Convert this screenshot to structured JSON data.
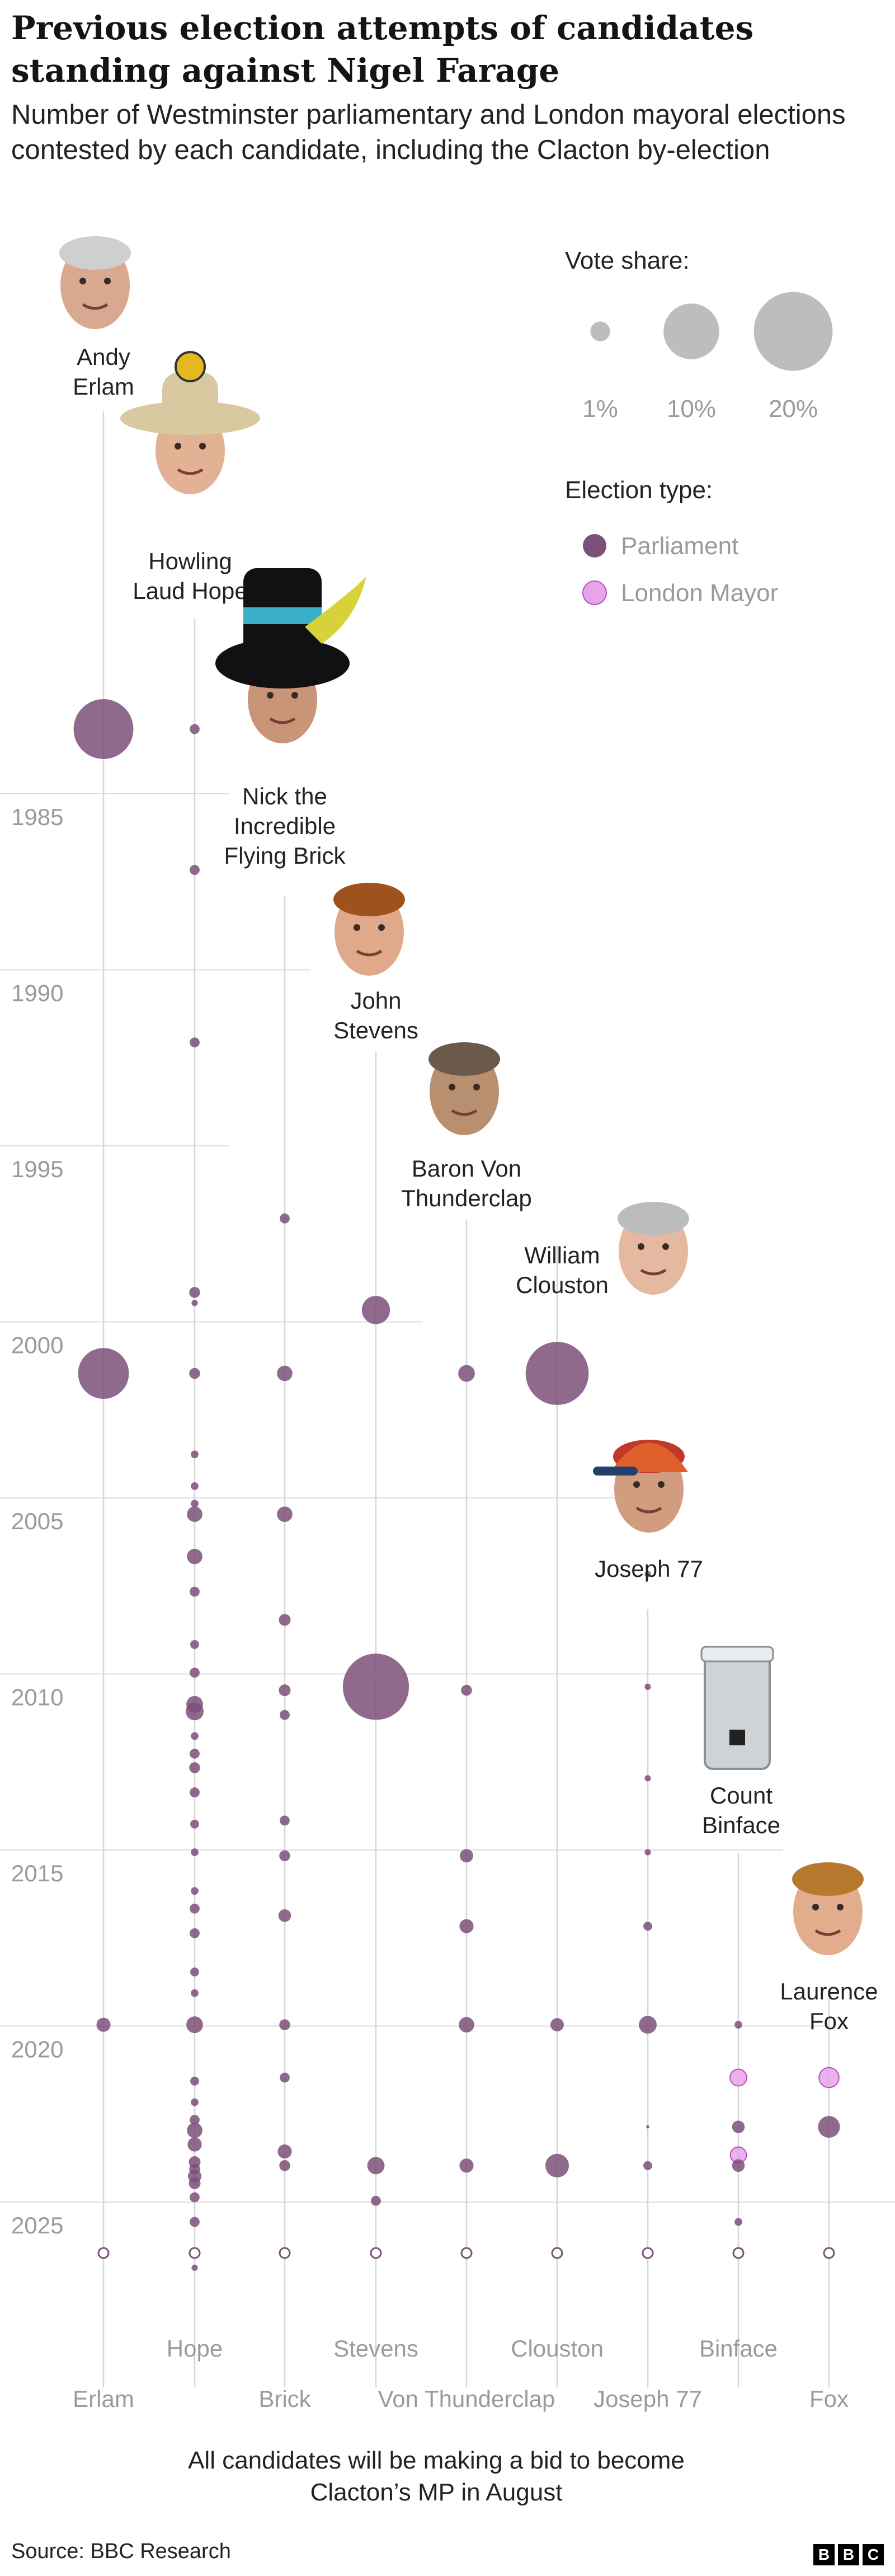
{
  "title": "Previous election attempts of candidates standing against Nigel Farage",
  "subtitle": "Number of Westminster parliamentary and London mayoral elections contested by each candidate, including the Clacton by-election",
  "footer": {
    "source": "Source: BBC Research",
    "logo": [
      "B",
      "B",
      "C"
    ]
  },
  "note": "All candidates will be making a bid to become Clacton’s MP in August",
  "legend": {
    "size_title": "Vote share:",
    "size_items": [
      {
        "label": "1%",
        "share": 1
      },
      {
        "label": "10%",
        "share": 10
      },
      {
        "label": "20%",
        "share": 20
      }
    ],
    "type_title": "Election type:",
    "type_items": [
      {
        "label": "Parliament",
        "color": "#7d5079"
      },
      {
        "label": "London Mayor",
        "color": "#e8a3ea"
      }
    ]
  },
  "colors": {
    "parliament": "#7d5079",
    "mayor": "#e8a3ea",
    "mayor_stroke": "#b84ec2",
    "grid": "#dddddd",
    "axis_text": "#9a9a9a"
  },
  "chart_data": {
    "type": "scatter",
    "y_axis": {
      "ticks": [
        1985,
        1990,
        1995,
        2000,
        2005,
        2010,
        2015,
        2020,
        2025
      ],
      "range": [
        1979,
        2031
      ],
      "reversed": true
    },
    "candidates": [
      {
        "name": "Andy Erlam",
        "label": "Erlam",
        "photo": "andy-erlam-photo-icon",
        "elections": [
          {
            "year": 1983.1,
            "share": 18,
            "type": "parliament"
          },
          {
            "year": 2001.4,
            "share": 13,
            "type": "parliament"
          },
          {
            "year": 2019.9,
            "share": 1,
            "type": "parliament"
          }
        ]
      },
      {
        "name": "Howling Laud Hope",
        "label": "Hope",
        "photo": "howling-laud-hope-photo-icon",
        "elections": [
          {
            "year": 1983.1,
            "share": 0.5,
            "type": "parliament"
          },
          {
            "year": 1987.1,
            "share": 0.5,
            "type": "parliament"
          },
          {
            "year": 1992.0,
            "share": 0.5,
            "type": "parliament"
          },
          {
            "year": 1999.1,
            "share": 0.6,
            "type": "parliament"
          },
          {
            "year": 1999.4,
            "share": 0.2,
            "type": "parliament"
          },
          {
            "year": 2001.4,
            "share": 0.6,
            "type": "parliament"
          },
          {
            "year": 2003.7,
            "share": 0.3,
            "type": "parliament"
          },
          {
            "year": 2004.6,
            "share": 0.3,
            "type": "parliament"
          },
          {
            "year": 2005.1,
            "share": 0.3,
            "type": "parliament"
          },
          {
            "year": 2005.4,
            "share": 1.2,
            "type": "parliament"
          },
          {
            "year": 2006.6,
            "share": 1.2,
            "type": "parliament"
          },
          {
            "year": 2007.6,
            "share": 0.5,
            "type": "parliament"
          },
          {
            "year": 2009.1,
            "share": 0.4,
            "type": "parliament"
          },
          {
            "year": 2009.9,
            "share": 0.5,
            "type": "parliament"
          },
          {
            "year": 2010.8,
            "share": 1.4,
            "type": "parliament"
          },
          {
            "year": 2011.0,
            "share": 1.6,
            "type": "parliament"
          },
          {
            "year": 2011.7,
            "share": 0.3,
            "type": "parliament"
          },
          {
            "year": 2012.2,
            "share": 0.5,
            "type": "parliament"
          },
          {
            "year": 2012.6,
            "share": 0.6,
            "type": "parliament"
          },
          {
            "year": 2013.3,
            "share": 0.5,
            "type": "parliament"
          },
          {
            "year": 2014.2,
            "share": 0.4,
            "type": "parliament"
          },
          {
            "year": 2015.0,
            "share": 0.3,
            "type": "parliament"
          },
          {
            "year": 2016.1,
            "share": 0.3,
            "type": "parliament"
          },
          {
            "year": 2016.6,
            "share": 0.5,
            "type": "parliament"
          },
          {
            "year": 2017.3,
            "share": 0.5,
            "type": "parliament"
          },
          {
            "year": 2018.4,
            "share": 0.4,
            "type": "parliament"
          },
          {
            "year": 2019.0,
            "share": 0.3,
            "type": "parliament"
          },
          {
            "year": 2019.9,
            "share": 1.4,
            "type": "parliament"
          },
          {
            "year": 2021.5,
            "share": 0.4,
            "type": "parliament"
          },
          {
            "year": 2022.1,
            "share": 0.3,
            "type": "parliament"
          },
          {
            "year": 2022.6,
            "share": 0.5,
            "type": "parliament"
          },
          {
            "year": 2022.9,
            "share": 1.2,
            "type": "parliament"
          },
          {
            "year": 2023.3,
            "share": 1.0,
            "type": "parliament"
          },
          {
            "year": 2023.8,
            "share": 0.7,
            "type": "parliament"
          },
          {
            "year": 2024.0,
            "share": 0.6,
            "type": "parliament"
          },
          {
            "year": 2024.2,
            "share": 0.9,
            "type": "parliament"
          },
          {
            "year": 2024.4,
            "share": 0.7,
            "type": "parliament"
          },
          {
            "year": 2024.8,
            "share": 0.5,
            "type": "parliament"
          },
          {
            "year": 2025.5,
            "share": 0.5,
            "type": "parliament"
          },
          {
            "year": 2026.8,
            "share": 0.2,
            "type": "parliament"
          }
        ]
      },
      {
        "name": "Nick the Incredible Flying Brick",
        "label": "Brick",
        "photo": "nick-the-incredible-flying-brick-photo-icon",
        "elections": [
          {
            "year": 1997.0,
            "share": 0.5,
            "type": "parliament"
          },
          {
            "year": 2001.4,
            "share": 1.2,
            "type": "parliament"
          },
          {
            "year": 2005.4,
            "share": 1.2,
            "type": "parliament"
          },
          {
            "year": 2008.4,
            "share": 0.7,
            "type": "parliament"
          },
          {
            "year": 2010.4,
            "share": 0.7,
            "type": "parliament"
          },
          {
            "year": 2011.1,
            "share": 0.5,
            "type": "parliament"
          },
          {
            "year": 2014.1,
            "share": 0.5,
            "type": "parliament"
          },
          {
            "year": 2015.1,
            "share": 0.6,
            "type": "parliament"
          },
          {
            "year": 2016.8,
            "share": 0.8,
            "type": "parliament"
          },
          {
            "year": 2019.9,
            "share": 0.6,
            "type": "parliament"
          },
          {
            "year": 2021.4,
            "share": 0.5,
            "type": "parliament"
          },
          {
            "year": 2023.5,
            "share": 1.0,
            "type": "parliament"
          },
          {
            "year": 2023.9,
            "share": 0.6,
            "type": "parliament"
          }
        ]
      },
      {
        "name": "John Stevens",
        "label": "Stevens",
        "photo": "john-stevens-photo-icon",
        "elections": [
          {
            "year": 1999.6,
            "share": 4,
            "type": "parliament"
          },
          {
            "year": 2010.3,
            "share": 22,
            "type": "parliament"
          },
          {
            "year": 2023.9,
            "share": 1.5,
            "type": "parliament"
          },
          {
            "year": 2024.9,
            "share": 0.5,
            "type": "parliament"
          }
        ]
      },
      {
        "name": "Baron Von Thunderclap",
        "label": "Von Thunderclap",
        "photo": "baron-von-thunderclap-photo-icon",
        "elections": [
          {
            "year": 2001.4,
            "share": 1.4,
            "type": "parliament"
          },
          {
            "year": 2010.4,
            "share": 0.6,
            "type": "parliament"
          },
          {
            "year": 2015.1,
            "share": 0.9,
            "type": "parliament"
          },
          {
            "year": 2017.1,
            "share": 1.0,
            "type": "parliament"
          },
          {
            "year": 2019.9,
            "share": 1.2,
            "type": "parliament"
          },
          {
            "year": 2023.9,
            "share": 1.0,
            "type": "parliament"
          }
        ]
      },
      {
        "name": "William Clouston",
        "label": "Clouston",
        "photo": "william-clouston-photo-icon",
        "elections": [
          {
            "year": 2001.4,
            "share": 20,
            "type": "parliament"
          },
          {
            "year": 2019.9,
            "share": 0.9,
            "type": "parliament"
          },
          {
            "year": 2023.9,
            "share": 2.8,
            "type": "parliament"
          }
        ]
      },
      {
        "name": "Joseph 77",
        "label": "Joseph 77",
        "photo": "joseph-77-photo-icon",
        "elections": [
          {
            "year": 2007.1,
            "share": 0.2,
            "type": "parliament"
          },
          {
            "year": 2010.3,
            "share": 0.2,
            "type": "parliament"
          },
          {
            "year": 2012.9,
            "share": 0.2,
            "type": "parliament"
          },
          {
            "year": 2015.0,
            "share": 0.2,
            "type": "parliament"
          },
          {
            "year": 2017.1,
            "share": 0.4,
            "type": "parliament"
          },
          {
            "year": 2019.9,
            "share": 1.6,
            "type": "parliament"
          },
          {
            "year": 2022.8,
            "share": 0.05,
            "type": "parliament"
          },
          {
            "year": 2023.9,
            "share": 0.4,
            "type": "parliament"
          }
        ]
      },
      {
        "name": "Count Binface",
        "label": "Binface",
        "photo": "count-binface-photo-icon",
        "elections": [
          {
            "year": 2019.9,
            "share": 0.3,
            "type": "parliament"
          },
          {
            "year": 2021.4,
            "share": 1.4,
            "type": "mayor"
          },
          {
            "year": 2022.8,
            "share": 0.8,
            "type": "parliament"
          },
          {
            "year": 2023.6,
            "share": 1.3,
            "type": "mayor"
          },
          {
            "year": 2023.9,
            "share": 0.8,
            "type": "parliament"
          },
          {
            "year": 2025.5,
            "share": 0.3,
            "type": "parliament"
          }
        ]
      },
      {
        "name": "Laurence Fox",
        "label": "Fox",
        "photo": "laurence-fox-photo-icon",
        "elections": [
          {
            "year": 2021.4,
            "share": 2.0,
            "type": "mayor"
          },
          {
            "year": 2022.8,
            "share": 2.4,
            "type": "parliament"
          }
        ]
      }
    ]
  }
}
